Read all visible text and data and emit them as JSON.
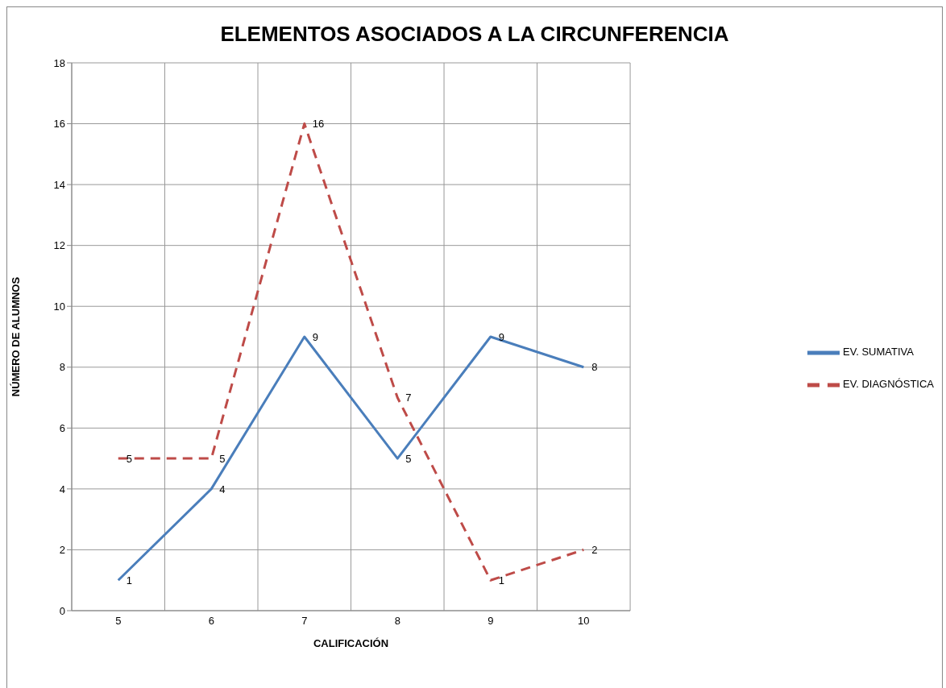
{
  "chart_data": {
    "type": "line",
    "title": "ELEMENTOS ASOCIADOS A LA CIRCUNFERENCIA",
    "xlabel": "CALIFICACIÓN",
    "ylabel": "NÚMERO DE ALUMNOS",
    "categories": [
      "5",
      "6",
      "7",
      "8",
      "9",
      "10"
    ],
    "series": [
      {
        "name": "EV. SUMATIVA",
        "color": "#4a7ebb",
        "line_style": "solid",
        "values": [
          1,
          4,
          9,
          5,
          9,
          8
        ]
      },
      {
        "name": "EV. DIAGNÓSTICA",
        "color": "#be4b48",
        "line_style": "dashed",
        "values": [
          5,
          5,
          16,
          7,
          1,
          2
        ]
      }
    ],
    "ylim": [
      0,
      18
    ],
    "yticks": [
      0,
      2,
      4,
      6,
      8,
      10,
      12,
      14,
      16,
      18
    ],
    "grid": true,
    "legend": "right",
    "marker": "none",
    "data_labels": true
  }
}
